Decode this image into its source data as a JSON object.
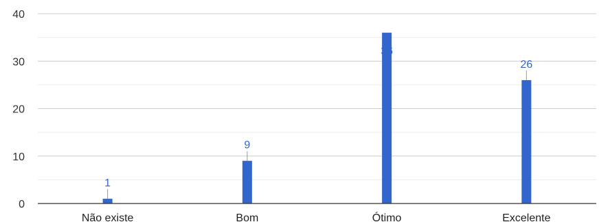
{
  "chart_data": {
    "type": "bar",
    "categories": [
      "Não existe",
      "Bom",
      "Ótimo",
      "Excelente"
    ],
    "values": [
      1,
      9,
      36,
      26
    ],
    "data_labels": [
      "1",
      "9",
      "36",
      "26"
    ],
    "title": "",
    "xlabel": "",
    "ylabel": "",
    "ylim": [
      0,
      40
    ],
    "yticks": [
      0,
      10,
      20,
      30,
      40
    ],
    "grid": true,
    "legend": "none",
    "colors": {
      "bar": "#3366cc",
      "data_label": "#3366cc",
      "grid_major": "#cccccc",
      "grid_minor": "#ebebeb",
      "axis": "#333333"
    }
  }
}
